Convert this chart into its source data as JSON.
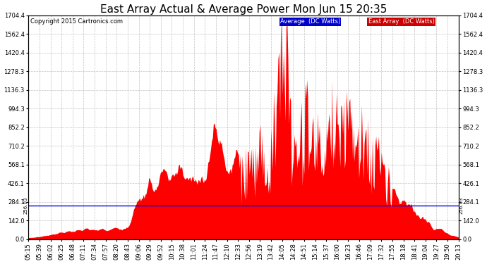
{
  "title": "East Array Actual & Average Power Mon Jun 15 20:35",
  "copyright": "Copyright 2015 Cartronics.com",
  "legend_label_avg": "Average  (DC Watts)",
  "legend_label_east": "East Array  (DC Watts)",
  "avg_line_color": "#0000ee",
  "fill_color": "#ff0000",
  "background_color": "#ffffff",
  "grid_color": "#bbbbbb",
  "avg_value": 256.03,
  "yticks": [
    0.0,
    142.0,
    284.1,
    426.1,
    568.1,
    710.2,
    852.2,
    994.3,
    1136.3,
    1278.3,
    1420.4,
    1562.4,
    1704.4
  ],
  "xtick_labels": [
    "05:15",
    "05:39",
    "06:02",
    "06:25",
    "06:48",
    "07:11",
    "07:34",
    "07:57",
    "08:20",
    "08:43",
    "09:06",
    "09:29",
    "09:52",
    "10:15",
    "10:38",
    "11:01",
    "11:24",
    "11:47",
    "12:10",
    "12:33",
    "12:56",
    "13:19",
    "13:42",
    "14:05",
    "14:28",
    "14:51",
    "15:14",
    "15:37",
    "16:00",
    "16:23",
    "16:46",
    "17:09",
    "17:32",
    "17:55",
    "18:18",
    "18:41",
    "19:04",
    "19:27",
    "19:50",
    "20:13"
  ],
  "ylim": [
    0.0,
    1704.4
  ],
  "title_fontsize": 11,
  "tick_fontsize": 6,
  "copyright_fontsize": 6,
  "legend_fontsize": 6,
  "solar_data": [
    12,
    20,
    38,
    55,
    65,
    72,
    68,
    75,
    80,
    90,
    310,
    390,
    480,
    420,
    510,
    460,
    500,
    870,
    540,
    600,
    650,
    700,
    730,
    1704,
    580,
    960,
    850,
    750,
    1090,
    820,
    760,
    680,
    560,
    400,
    280,
    200,
    140,
    90,
    45,
    15
  ],
  "noise_seed": 77,
  "noise_scale": 0.18
}
